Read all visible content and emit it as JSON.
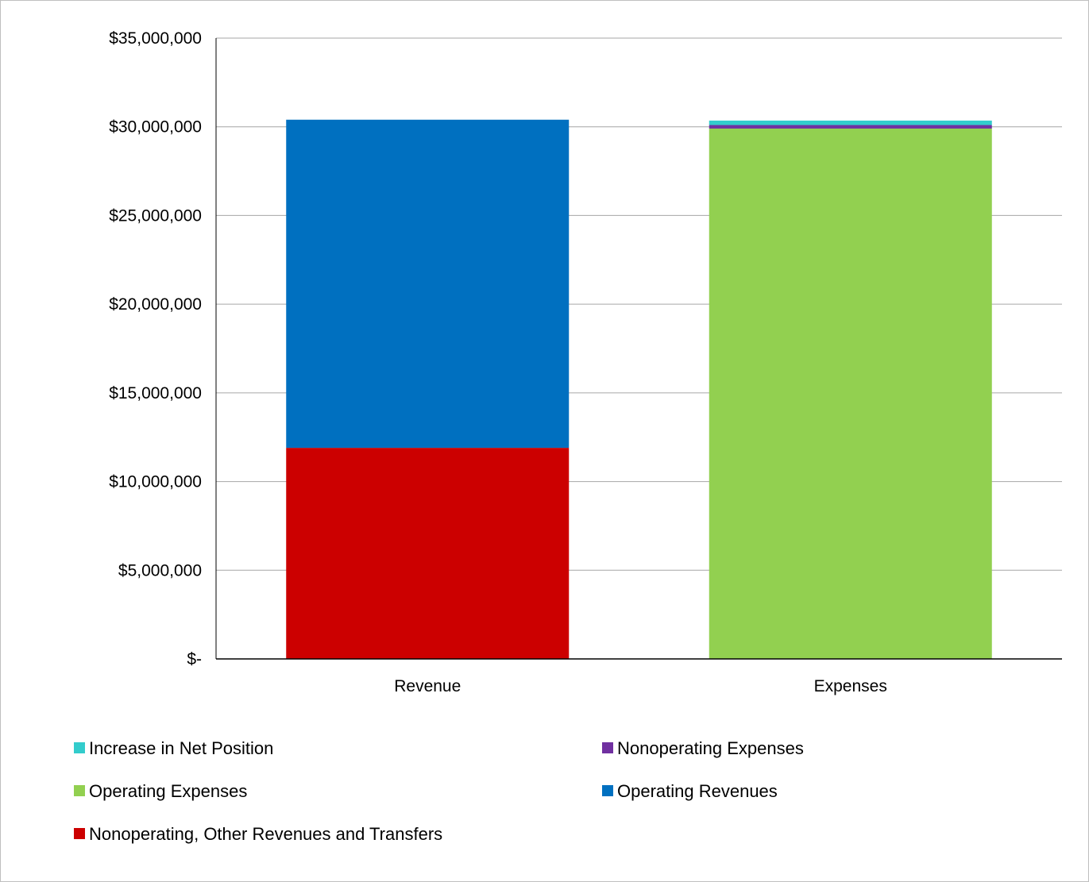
{
  "chart_data": {
    "type": "bar",
    "stacked": true,
    "categories": [
      "Revenue",
      "Expenses"
    ],
    "series": [
      {
        "name": "Nonoperating, Other Revenues and Transfers",
        "color": "#cc0000",
        "values": [
          11900000,
          0
        ]
      },
      {
        "name": "Operating Revenues",
        "color": "#0070c0",
        "values": [
          18500000,
          0
        ]
      },
      {
        "name": "Operating Expenses",
        "color": "#92d050",
        "values": [
          0,
          29900000
        ]
      },
      {
        "name": "Nonoperating Expenses",
        "color": "#7030a0",
        "values": [
          0,
          200000
        ]
      },
      {
        "name": "Increase in Net Position",
        "color": "#33cccc",
        "values": [
          0,
          250000
        ]
      }
    ],
    "ylim": [
      0,
      35000000
    ],
    "yticks": [
      0,
      5000000,
      10000000,
      15000000,
      20000000,
      25000000,
      30000000,
      35000000
    ],
    "ytick_labels": [
      "$-",
      "$5,000,000",
      "$10,000,000",
      "$15,000,000",
      "$20,000,000",
      "$25,000,000",
      "$30,000,000",
      "$35,000,000"
    ],
    "legend_order": [
      "Increase in Net Position",
      "Nonoperating Expenses",
      "Operating Expenses",
      "Operating Revenues",
      "Nonoperating, Other Revenues and Transfers"
    ],
    "legend_position": "bottom",
    "grid": true,
    "title": "",
    "xlabel": "",
    "ylabel": ""
  }
}
